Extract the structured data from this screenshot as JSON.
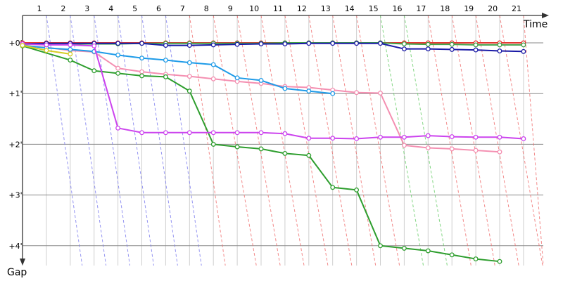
{
  "chart_data": {
    "type": "line",
    "x_axis_label": "Time",
    "y_axis_label": "Gap",
    "x_ticks": [
      "1",
      "2",
      "3",
      "4",
      "5",
      "6",
      "7",
      "8",
      "9",
      "10",
      "11",
      "12",
      "13",
      "14",
      "15",
      "16",
      "17",
      "18",
      "19",
      "20",
      "21"
    ],
    "y_ticks": [
      "+0'",
      "+1'",
      "+2'",
      "+3'",
      "+4'"
    ],
    "y_range_minutes": [
      0,
      4
    ],
    "grid": true,
    "series": [
      {
        "color": "#e53935",
        "points": [
          [
            1,
            0.0
          ],
          [
            2,
            0.0
          ],
          [
            3,
            0.0
          ],
          [
            4,
            0.0
          ],
          [
            5,
            0.0
          ],
          [
            6,
            0.0
          ],
          [
            7,
            0.0
          ],
          [
            8,
            0.0
          ],
          [
            9,
            0.0
          ],
          [
            10,
            0.0
          ],
          [
            11,
            0.0
          ],
          [
            12,
            0.0
          ],
          [
            13,
            0.0
          ],
          [
            14,
            0.0
          ],
          [
            15,
            0.0
          ],
          [
            16,
            0.0
          ],
          [
            17,
            0.0
          ],
          [
            18,
            0.0
          ],
          [
            19,
            0.0
          ],
          [
            20,
            0.0
          ],
          [
            21,
            0.0
          ],
          [
            22,
            0.0
          ]
        ]
      },
      {
        "color": "#43a047",
        "points": [
          [
            1,
            0.03
          ],
          [
            2,
            0.02
          ],
          [
            3,
            0.02
          ],
          [
            4,
            0.02
          ],
          [
            5,
            0.02
          ],
          [
            6,
            0.01
          ],
          [
            7,
            0.01
          ],
          [
            8,
            0.01
          ],
          [
            9,
            0.01
          ],
          [
            10,
            0.01
          ],
          [
            11,
            0.01
          ],
          [
            12,
            0.0
          ],
          [
            13,
            0.0
          ],
          [
            14,
            0.0
          ],
          [
            15,
            0.0
          ],
          [
            16,
            0.0
          ],
          [
            17,
            0.02
          ],
          [
            18,
            0.03
          ],
          [
            19,
            0.03
          ],
          [
            20,
            0.04
          ],
          [
            21,
            0.04
          ],
          [
            22,
            0.04
          ]
        ]
      },
      {
        "color": "#1a1aa6",
        "points": [
          [
            1,
            0.02
          ],
          [
            2,
            0.01
          ],
          [
            3,
            0.01
          ],
          [
            4,
            0.01
          ],
          [
            5,
            0.01
          ],
          [
            6,
            0.01
          ],
          [
            7,
            0.05
          ],
          [
            8,
            0.05
          ],
          [
            9,
            0.04
          ],
          [
            10,
            0.03
          ],
          [
            11,
            0.02
          ],
          [
            12,
            0.02
          ],
          [
            13,
            0.01
          ],
          [
            14,
            0.01
          ],
          [
            15,
            0.01
          ],
          [
            16,
            0.01
          ],
          [
            17,
            0.12
          ],
          [
            18,
            0.12
          ],
          [
            19,
            0.13
          ],
          [
            20,
            0.14
          ],
          [
            21,
            0.16
          ],
          [
            22,
            0.17
          ]
        ]
      },
      {
        "color": "#f48fb1",
        "points": [
          [
            1,
            0.05
          ],
          [
            2,
            0.09
          ],
          [
            3,
            0.15
          ],
          [
            4,
            0.18
          ],
          [
            5,
            0.5
          ],
          [
            6,
            0.57
          ],
          [
            7,
            0.62
          ],
          [
            8,
            0.66
          ],
          [
            9,
            0.71
          ],
          [
            10,
            0.76
          ],
          [
            11,
            0.8
          ],
          [
            12,
            0.86
          ],
          [
            13,
            0.88
          ],
          [
            14,
            0.93
          ],
          [
            15,
            0.98
          ],
          [
            16,
            0.99
          ],
          [
            17,
            2.02
          ],
          [
            18,
            2.07
          ],
          [
            19,
            2.09
          ],
          [
            20,
            2.12
          ],
          [
            21,
            2.15
          ]
        ]
      },
      {
        "color": "#1e9be8",
        "points": [
          [
            1,
            0.05
          ],
          [
            2,
            0.1
          ],
          [
            3,
            0.13
          ],
          [
            4,
            0.17
          ],
          [
            5,
            0.24
          ],
          [
            6,
            0.3
          ],
          [
            7,
            0.34
          ],
          [
            8,
            0.39
          ],
          [
            9,
            0.43
          ],
          [
            10,
            0.69
          ],
          [
            11,
            0.74
          ],
          [
            12,
            0.9
          ],
          [
            13,
            0.95
          ],
          [
            14,
            1.0
          ]
        ]
      },
      {
        "color": "#2e9e2e",
        "points": [
          [
            1,
            0.06
          ],
          [
            3,
            0.34
          ],
          [
            4,
            0.55
          ],
          [
            5,
            0.6
          ],
          [
            6,
            0.65
          ],
          [
            7,
            0.67
          ],
          [
            8,
            0.95
          ],
          [
            9,
            2.0
          ],
          [
            10,
            2.05
          ],
          [
            11,
            2.09
          ],
          [
            12,
            2.18
          ],
          [
            13,
            2.22
          ],
          [
            14,
            2.85
          ],
          [
            15,
            2.9
          ],
          [
            16,
            4.0
          ],
          [
            17,
            4.05
          ],
          [
            18,
            4.1
          ],
          [
            19,
            4.18
          ],
          [
            20,
            4.26
          ],
          [
            21,
            4.31
          ]
        ]
      },
      {
        "color": "#cc44ee",
        "points": [
          [
            1,
            0.02
          ],
          [
            2,
            0.04
          ],
          [
            3,
            0.04
          ],
          [
            4,
            0.06
          ],
          [
            5,
            1.68
          ],
          [
            6,
            1.77
          ],
          [
            7,
            1.77
          ],
          [
            8,
            1.77
          ],
          [
            9,
            1.77
          ],
          [
            10,
            1.77
          ],
          [
            11,
            1.77
          ],
          [
            12,
            1.79
          ],
          [
            13,
            1.88
          ],
          [
            14,
            1.88
          ],
          [
            15,
            1.89
          ],
          [
            16,
            1.86
          ],
          [
            17,
            1.86
          ],
          [
            18,
            1.83
          ],
          [
            19,
            1.85
          ],
          [
            20,
            1.86
          ],
          [
            21,
            1.86
          ],
          [
            22,
            1.89
          ]
        ]
      },
      {
        "color": "#d4cc22",
        "points": [
          [
            1,
            0.05
          ],
          [
            2,
            0.15
          ],
          [
            3,
            0.22
          ]
        ]
      }
    ]
  }
}
